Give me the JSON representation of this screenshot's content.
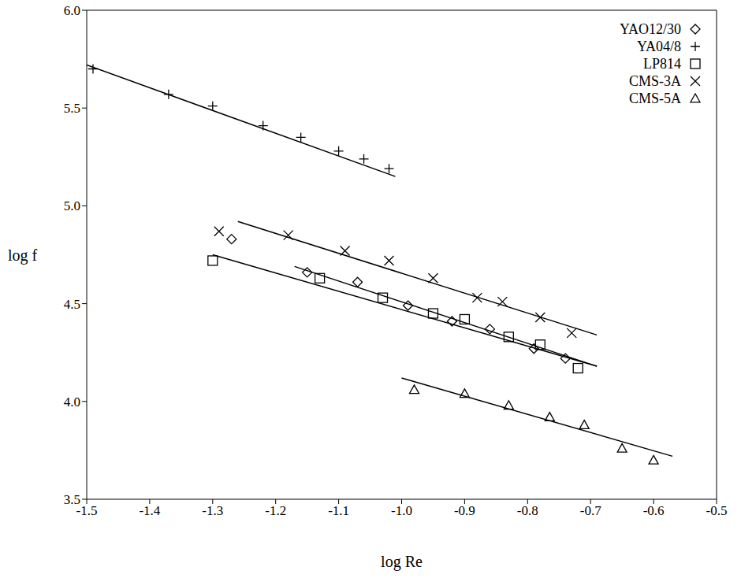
{
  "chart_data": {
    "type": "scatter",
    "x_label": "log Re",
    "y_label": "log f",
    "xlim": [
      -1.5,
      -0.5
    ],
    "ylim": [
      3.5,
      6.0
    ],
    "xticks": [
      -1.5,
      -1.4,
      -1.3,
      -1.2,
      -1.1,
      {
        "value": -1,
        "label": "-1.0"
      },
      -0.9,
      -0.8,
      -0.7,
      -0.6,
      -0.5
    ],
    "yticks": [
      3.5,
      {
        "value": 4,
        "label": "4.0"
      },
      4.5,
      {
        "value": 5,
        "label": "5.0"
      },
      5.5,
      {
        "value": 6,
        "label": "6.0"
      }
    ],
    "legend": "upper right",
    "grid": false,
    "series": [
      {
        "name": "YAO12/30",
        "marker": "diamond",
        "color": "#000000",
        "x": [
          -1.27,
          -1.15,
          -1.07,
          -0.99,
          -0.92,
          -0.86,
          -0.79,
          -0.74
        ],
        "values": [
          4.83,
          4.66,
          4.61,
          4.49,
          4.41,
          4.37,
          4.27,
          4.22
        ],
        "fit": {
          "x": [
            -1.17,
            -0.69
          ],
          "y": [
            4.69,
            4.18
          ]
        }
      },
      {
        "name": "YA04/8",
        "marker": "plus",
        "color": "#000000",
        "x": [
          -1.49,
          -1.37,
          -1.3,
          -1.22,
          -1.16,
          -1.1,
          -1.06,
          -1.02
        ],
        "values": [
          5.7,
          5.57,
          5.51,
          5.41,
          5.35,
          5.28,
          5.24,
          5.19
        ],
        "fit": {
          "x": [
            -1.5,
            -1.01
          ],
          "y": [
            5.72,
            5.15
          ]
        }
      },
      {
        "name": "LP814",
        "marker": "square",
        "color": "#000000",
        "x": [
          -1.3,
          -1.13,
          -1.03,
          -0.95,
          -0.9,
          -0.83,
          -0.78,
          -0.72
        ],
        "values": [
          4.72,
          4.63,
          4.53,
          4.45,
          4.42,
          4.33,
          4.29,
          4.17
        ],
        "fit": {
          "x": [
            -1.3,
            -0.69
          ],
          "y": [
            4.75,
            4.18
          ]
        }
      },
      {
        "name": "CMS-3A",
        "marker": "x",
        "color": "#000000",
        "x": [
          -1.29,
          -1.18,
          -1.09,
          -1.02,
          -0.95,
          -0.88,
          -0.84,
          -0.78,
          -0.73
        ],
        "values": [
          4.87,
          4.85,
          4.77,
          4.72,
          4.63,
          4.53,
          4.51,
          4.43,
          4.35
        ],
        "fit": {
          "x": [
            -1.26,
            -0.69
          ],
          "y": [
            4.92,
            4.34
          ]
        }
      },
      {
        "name": "CMS-5A",
        "marker": "triangle",
        "color": "#000000",
        "x": [
          -0.98,
          -0.9,
          -0.83,
          -0.765,
          -0.71,
          -0.65,
          -0.6
        ],
        "values": [
          4.06,
          4.04,
          3.98,
          3.92,
          3.88,
          3.76,
          3.7
        ],
        "fit": {
          "x": [
            -1.0,
            -0.57
          ],
          "y": [
            4.12,
            3.72
          ]
        }
      }
    ]
  }
}
